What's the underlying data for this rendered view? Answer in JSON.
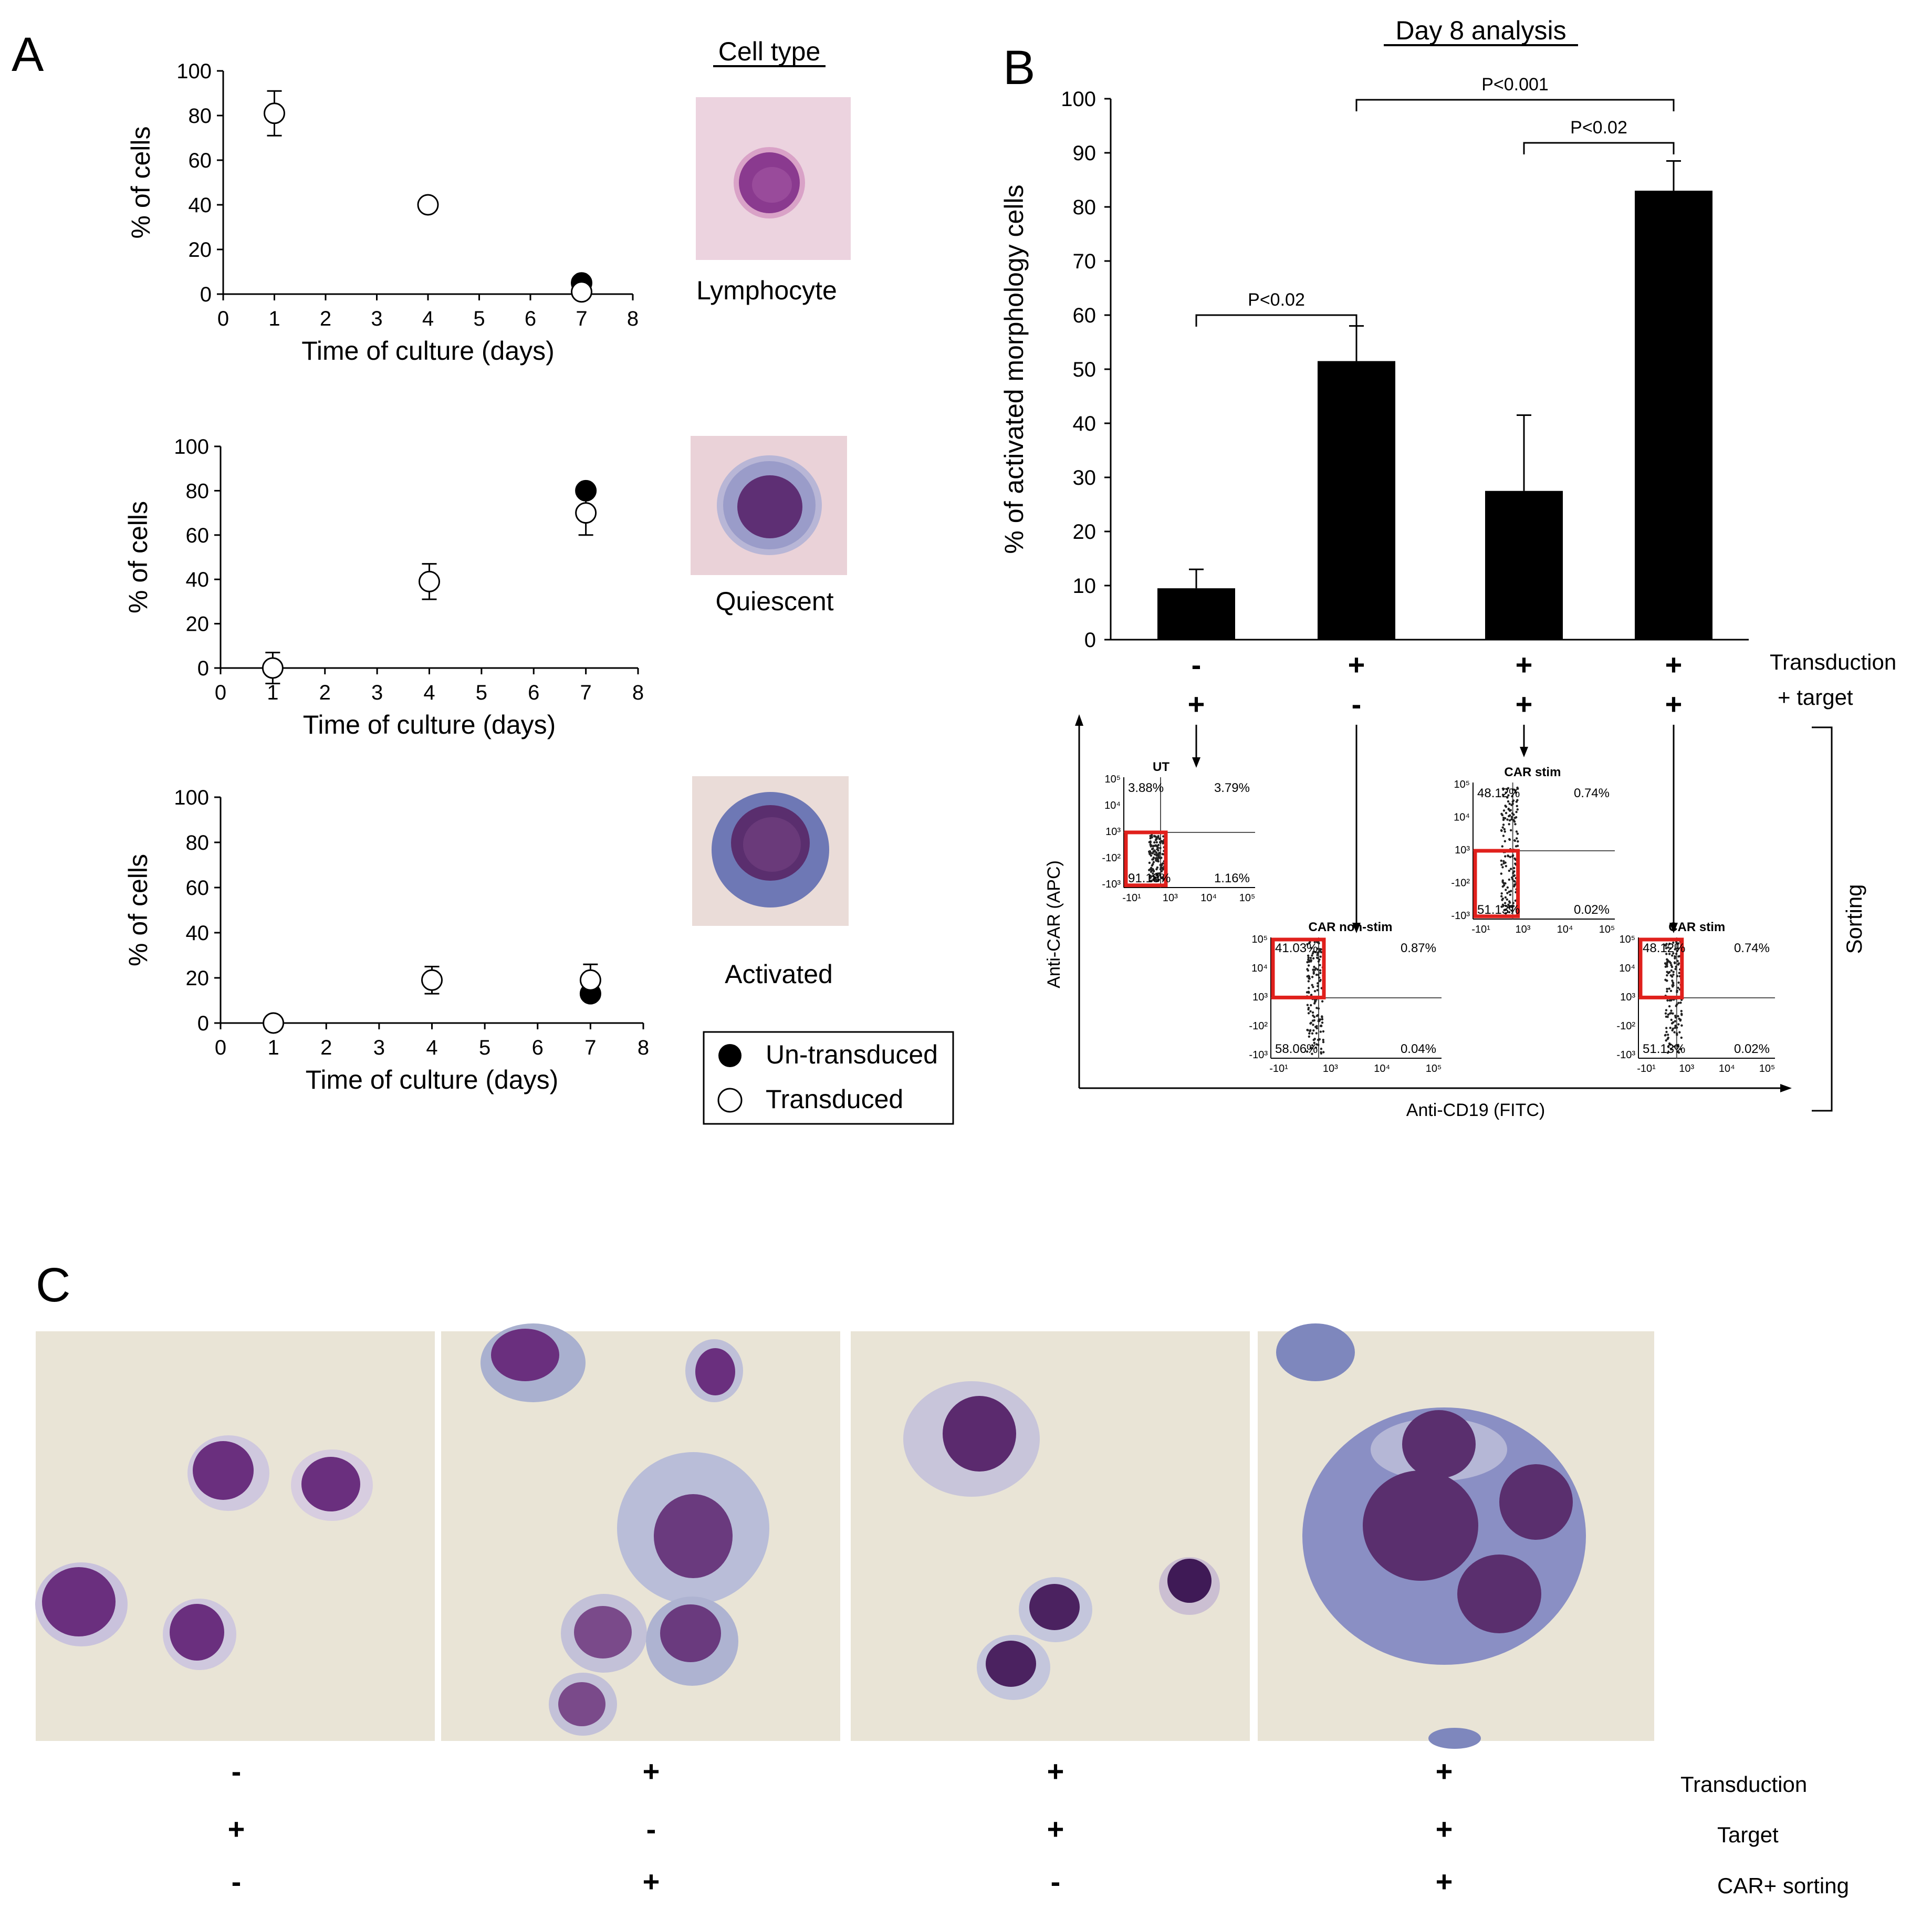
{
  "colors": {
    "filled_marker": "#000000",
    "open_marker": "#ffffff",
    "bar": "#000000",
    "gate": "#e0201c",
    "slide_bg": "#e9e4d6",
    "cell_nucleus": "#7a3f8a",
    "cell_cytoplasm": "#8a8fc4",
    "cell_membrane": "#cfc8de"
  },
  "panel_a": {
    "label": "A",
    "column_header": "Cell type",
    "legend": {
      "filled": "Un-transduced",
      "open": "Transduced"
    },
    "chart_data": [
      {
        "type": "scatter",
        "ylabel": "% of cells",
        "xlabel": "Time of culture (days)",
        "xlim": [
          0,
          8
        ],
        "ylim": [
          0,
          100
        ],
        "xticks": [
          "0",
          "1",
          "2",
          "3",
          "4",
          "5",
          "6",
          "7",
          "8"
        ],
        "yticks": [
          "0",
          "20",
          "40",
          "60",
          "80",
          "100"
        ],
        "cell_type": "Lymphocyte",
        "series": [
          {
            "name": "Un-transduced",
            "points": [
              {
                "x": 7,
                "y": 5
              }
            ]
          },
          {
            "name": "Transduced",
            "points": [
              {
                "x": 1,
                "y": 81,
                "err": 10
              },
              {
                "x": 4,
                "y": 40,
                "err": 0
              },
              {
                "x": 7,
                "y": 1,
                "err": 0
              }
            ]
          }
        ]
      },
      {
        "type": "scatter",
        "ylabel": "% of cells",
        "xlabel": "Time of culture (days)",
        "xlim": [
          0,
          8
        ],
        "ylim": [
          0,
          100
        ],
        "xticks": [
          "0",
          "1",
          "2",
          "3",
          "4",
          "5",
          "6",
          "7",
          "8"
        ],
        "yticks": [
          "0",
          "20",
          "40",
          "60",
          "80",
          "100"
        ],
        "cell_type": "Quiescent",
        "series": [
          {
            "name": "Un-transduced",
            "points": [
              {
                "x": 7,
                "y": 80
              }
            ]
          },
          {
            "name": "Transduced",
            "points": [
              {
                "x": 1,
                "y": 0,
                "err": 7
              },
              {
                "x": 4,
                "y": 39,
                "err": 8
              },
              {
                "x": 7,
                "y": 70,
                "err": 10
              }
            ]
          }
        ]
      },
      {
        "type": "scatter",
        "ylabel": "% of cells",
        "xlabel": "Time of culture (days)",
        "xlim": [
          0,
          8
        ],
        "ylim": [
          0,
          100
        ],
        "xticks": [
          "0",
          "1",
          "2",
          "3",
          "4",
          "5",
          "6",
          "7",
          "8"
        ],
        "yticks": [
          "0",
          "20",
          "40",
          "60",
          "80",
          "100"
        ],
        "cell_type": "Activated",
        "series": [
          {
            "name": "Un-transduced",
            "points": [
              {
                "x": 7,
                "y": 13
              }
            ]
          },
          {
            "name": "Transduced",
            "points": [
              {
                "x": 1,
                "y": 0,
                "err": 0
              },
              {
                "x": 4,
                "y": 19,
                "err": 6
              },
              {
                "x": 7,
                "y": 19,
                "err": 7
              }
            ]
          }
        ]
      }
    ]
  },
  "panel_b": {
    "label": "B",
    "title": "Day 8 analysis",
    "chart_data": {
      "type": "bar",
      "ylabel": "% of activated morphology cells",
      "ylim": [
        0,
        100
      ],
      "yticks": [
        "0",
        "10",
        "20",
        "30",
        "40",
        "50",
        "60",
        "70",
        "80",
        "90",
        "100"
      ],
      "values": [
        9.5,
        51.5,
        27.5,
        83
      ],
      "errors": [
        3.5,
        6.5,
        14,
        5.5
      ],
      "comparisons": [
        {
          "from": 0,
          "to": 1,
          "label": "P<0.02"
        },
        {
          "from": 2,
          "to": 3,
          "label": "P<0.02"
        },
        {
          "from": 1,
          "to": 3,
          "label": "P<0.001"
        }
      ]
    },
    "row_labels": {
      "transduction": "Transduction",
      "target": "+ target",
      "sorting": "Sorting"
    },
    "transduction_signs": [
      "-",
      "+",
      "+",
      "+"
    ],
    "target_signs": [
      "+",
      "-",
      "+",
      "+"
    ],
    "flow": {
      "y_axis": "Anti-CAR (APC)",
      "x_axis": "Anti-CD19  (FITC)",
      "plots": [
        {
          "title": "UT",
          "q_ul": "3.88%",
          "q_ur": "3.79%",
          "q_ll": "91.18%",
          "q_lr": "1.16%"
        },
        {
          "title": "CAR non-stim",
          "q_ul": "41.03%",
          "q_ur": "0.87%",
          "q_ll": "58.06%",
          "q_lr": "0.04%"
        },
        {
          "title": "CAR stim",
          "q_ul": "48.12%",
          "q_ur": "0.74%",
          "q_ll": "51.13%",
          "q_lr": "0.02%"
        },
        {
          "title": "CAR stim",
          "q_ul": "48.12%",
          "q_ur": "0.74%",
          "q_ll": "51.13%",
          "q_lr": "0.02%"
        }
      ],
      "ticks": {
        "y": [
          "10⁵",
          "10⁴",
          "10³",
          "-10²",
          "-10³"
        ],
        "x": [
          "-10¹",
          "10³",
          "10⁴",
          "10⁵"
        ]
      }
    }
  },
  "panel_c": {
    "label": "C",
    "row_labels": {
      "transduction": "Transduction",
      "target": "Target",
      "sorting": "CAR+ sorting"
    },
    "transduction_signs": [
      "-",
      "+",
      "+",
      "+"
    ],
    "target_signs": [
      "+",
      "-",
      "+",
      "+"
    ],
    "sorting_signs": [
      "-",
      "+",
      "-",
      "+"
    ]
  }
}
